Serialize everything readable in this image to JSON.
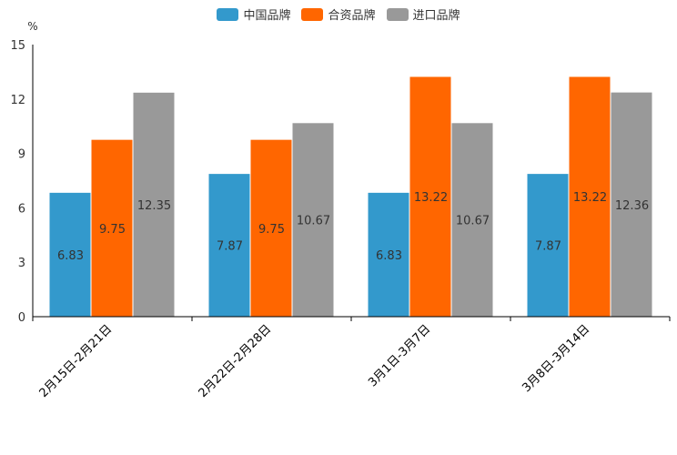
{
  "chart_data": {
    "type": "bar",
    "title": "",
    "xlabel": "",
    "ylabel": "%",
    "ylim": [
      0,
      15
    ],
    "yticks": [
      0,
      3,
      6,
      9,
      12,
      15
    ],
    "grid": false,
    "legend_position": "top-center",
    "categories": [
      "2月15日-2月21日",
      "2月22日-2月28日",
      "3月1日-3月7日",
      "3月8日-3月14日"
    ],
    "series": [
      {
        "name": "中国品牌",
        "color": "#3399CC",
        "values": [
          6.83,
          7.87,
          6.83,
          7.87
        ],
        "labels": [
          "6.83",
          "7.87",
          "6.83",
          "7.87"
        ]
      },
      {
        "name": "合资品牌",
        "color": "#FF6600",
        "values": [
          9.75,
          9.75,
          13.22,
          13.22
        ],
        "labels": [
          "9.75",
          "9.75",
          "13.22",
          "13.22"
        ]
      },
      {
        "name": "进口品牌",
        "color": "#999999",
        "values": [
          12.35,
          10.67,
          10.67,
          12.36
        ],
        "labels": [
          "12.35",
          "10.67",
          "10.67",
          "12.36"
        ]
      }
    ]
  }
}
